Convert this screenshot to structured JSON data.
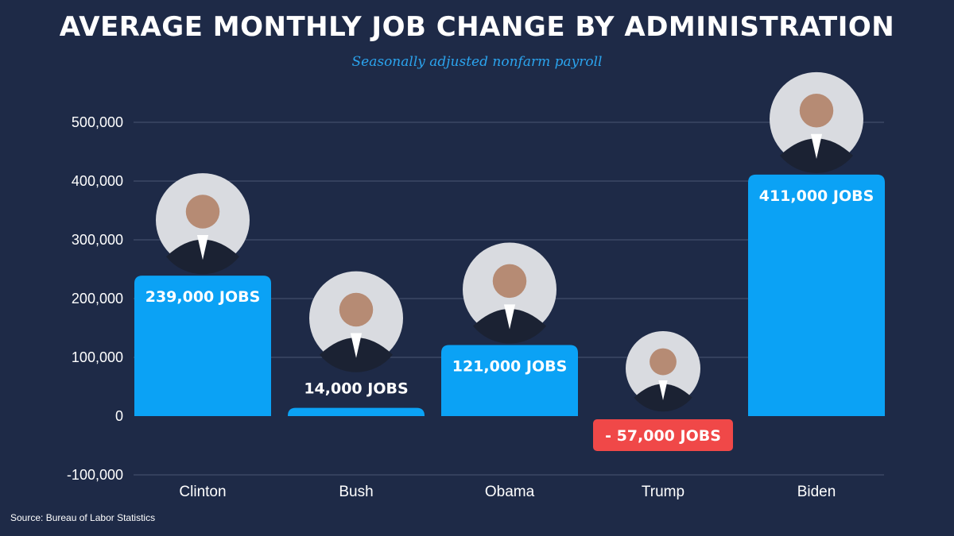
{
  "chart_data": {
    "type": "bar",
    "title": "AVERAGE MONTHLY JOB CHANGE BY ADMINISTRATION",
    "subtitle": "Seasonally adjusted nonfarm payroll",
    "categories": [
      "Clinton",
      "Bush",
      "Obama",
      "Trump",
      "Biden"
    ],
    "values": [
      239000,
      14000,
      121000,
      -57000,
      411000
    ],
    "data_labels": [
      "239,000 JOBS",
      "14,000 JOBS",
      "121,000 JOBS",
      "- 57,000 JOBS",
      "411,000 JOBS"
    ],
    "yticks": [
      -100000,
      0,
      100000,
      200000,
      300000,
      400000,
      500000
    ],
    "ytick_labels": [
      "-100,000",
      "0",
      "100,000",
      "200,000",
      "300,000",
      "400,000",
      "500,000"
    ],
    "ylim": [
      -100000,
      500000
    ],
    "grid": true,
    "legend": "none",
    "colors": {
      "positive": "#0ba2f5",
      "negative": "#f04848",
      "background": "#1e2a47",
      "grid": "#4a5573",
      "subtitle": "#2ba4ee"
    },
    "portraits": [
      {
        "name": "clinton-portrait-icon"
      },
      {
        "name": "bush-portrait-icon"
      },
      {
        "name": "obama-portrait-icon"
      },
      {
        "name": "trump-portrait-icon"
      },
      {
        "name": "biden-portrait-icon"
      }
    ]
  },
  "source": "Source: Bureau of Labor Statistics"
}
